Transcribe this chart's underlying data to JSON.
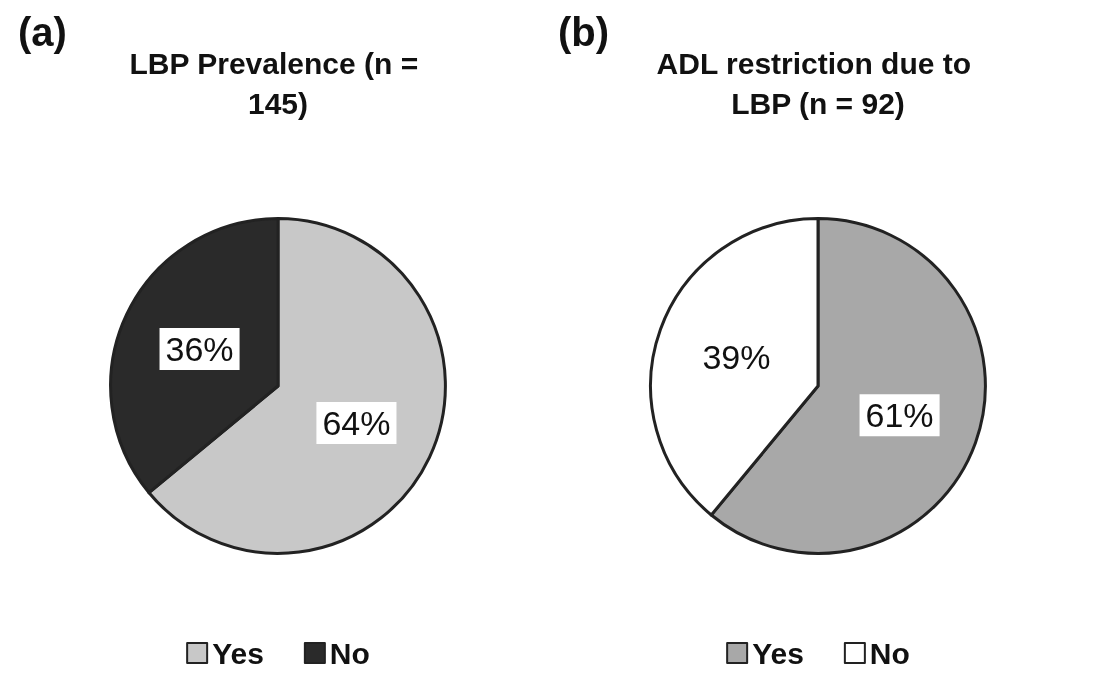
{
  "chart_data": [
    {
      "type": "pie",
      "title": "LBP Prevalence (n = 145)",
      "annotations": [
        "(a)"
      ],
      "categories": [
        "Yes",
        "No"
      ],
      "values": [
        64,
        36
      ],
      "colors": [
        "#c8c8c8",
        "#2a2a2a"
      ],
      "value_labels": [
        "64%",
        "36%"
      ],
      "legend": "bottom"
    },
    {
      "type": "pie",
      "title": "ADL restriction due to LBP (n = 92)",
      "annotations": [
        "(b)"
      ],
      "categories": [
        "Yes",
        "No"
      ],
      "values": [
        61,
        39
      ],
      "colors": [
        "#a8a8a8",
        "#ffffff"
      ],
      "value_labels": [
        "61%",
        "39%"
      ],
      "legend": "bottom"
    }
  ]
}
